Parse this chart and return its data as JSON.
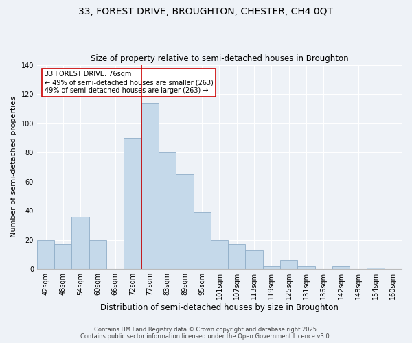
{
  "title1": "33, FOREST DRIVE, BROUGHTON, CHESTER, CH4 0QT",
  "title2": "Size of property relative to semi-detached houses in Broughton",
  "xlabel": "Distribution of semi-detached houses by size in Broughton",
  "ylabel": "Number of semi-detached properties",
  "categories": [
    "42sqm",
    "48sqm",
    "54sqm",
    "60sqm",
    "66sqm",
    "72sqm",
    "77sqm",
    "83sqm",
    "89sqm",
    "95sqm",
    "101sqm",
    "107sqm",
    "113sqm",
    "119sqm",
    "125sqm",
    "131sqm",
    "136sqm",
    "142sqm",
    "148sqm",
    "154sqm",
    "160sqm"
  ],
  "values": [
    20,
    17,
    36,
    20,
    0,
    90,
    114,
    80,
    65,
    39,
    20,
    17,
    13,
    2,
    6,
    2,
    0,
    2,
    0,
    1,
    0
  ],
  "bar_color": "#c5d9ea",
  "bar_edge_color": "#90aec8",
  "vline_index": 6,
  "annotation_title": "33 FOREST DRIVE: 76sqm",
  "annotation_line1": "← 49% of semi-detached houses are smaller (263)",
  "annotation_line2": "49% of semi-detached houses are larger (263) →",
  "annotation_box_color": "#ffffff",
  "annotation_border_color": "#cc0000",
  "vline_color": "#cc0000",
  "ylim": [
    0,
    140
  ],
  "yticks": [
    0,
    20,
    40,
    60,
    80,
    100,
    120,
    140
  ],
  "bg_color": "#eef2f7",
  "grid_color": "#ffffff",
  "footer1": "Contains HM Land Registry data © Crown copyright and database right 2025.",
  "footer2": "Contains public sector information licensed under the Open Government Licence v3.0.",
  "title1_fontsize": 10,
  "title2_fontsize": 8.5,
  "xlabel_fontsize": 8.5,
  "ylabel_fontsize": 8,
  "tick_fontsize": 7,
  "annotation_fontsize": 7,
  "footer_fontsize": 6
}
